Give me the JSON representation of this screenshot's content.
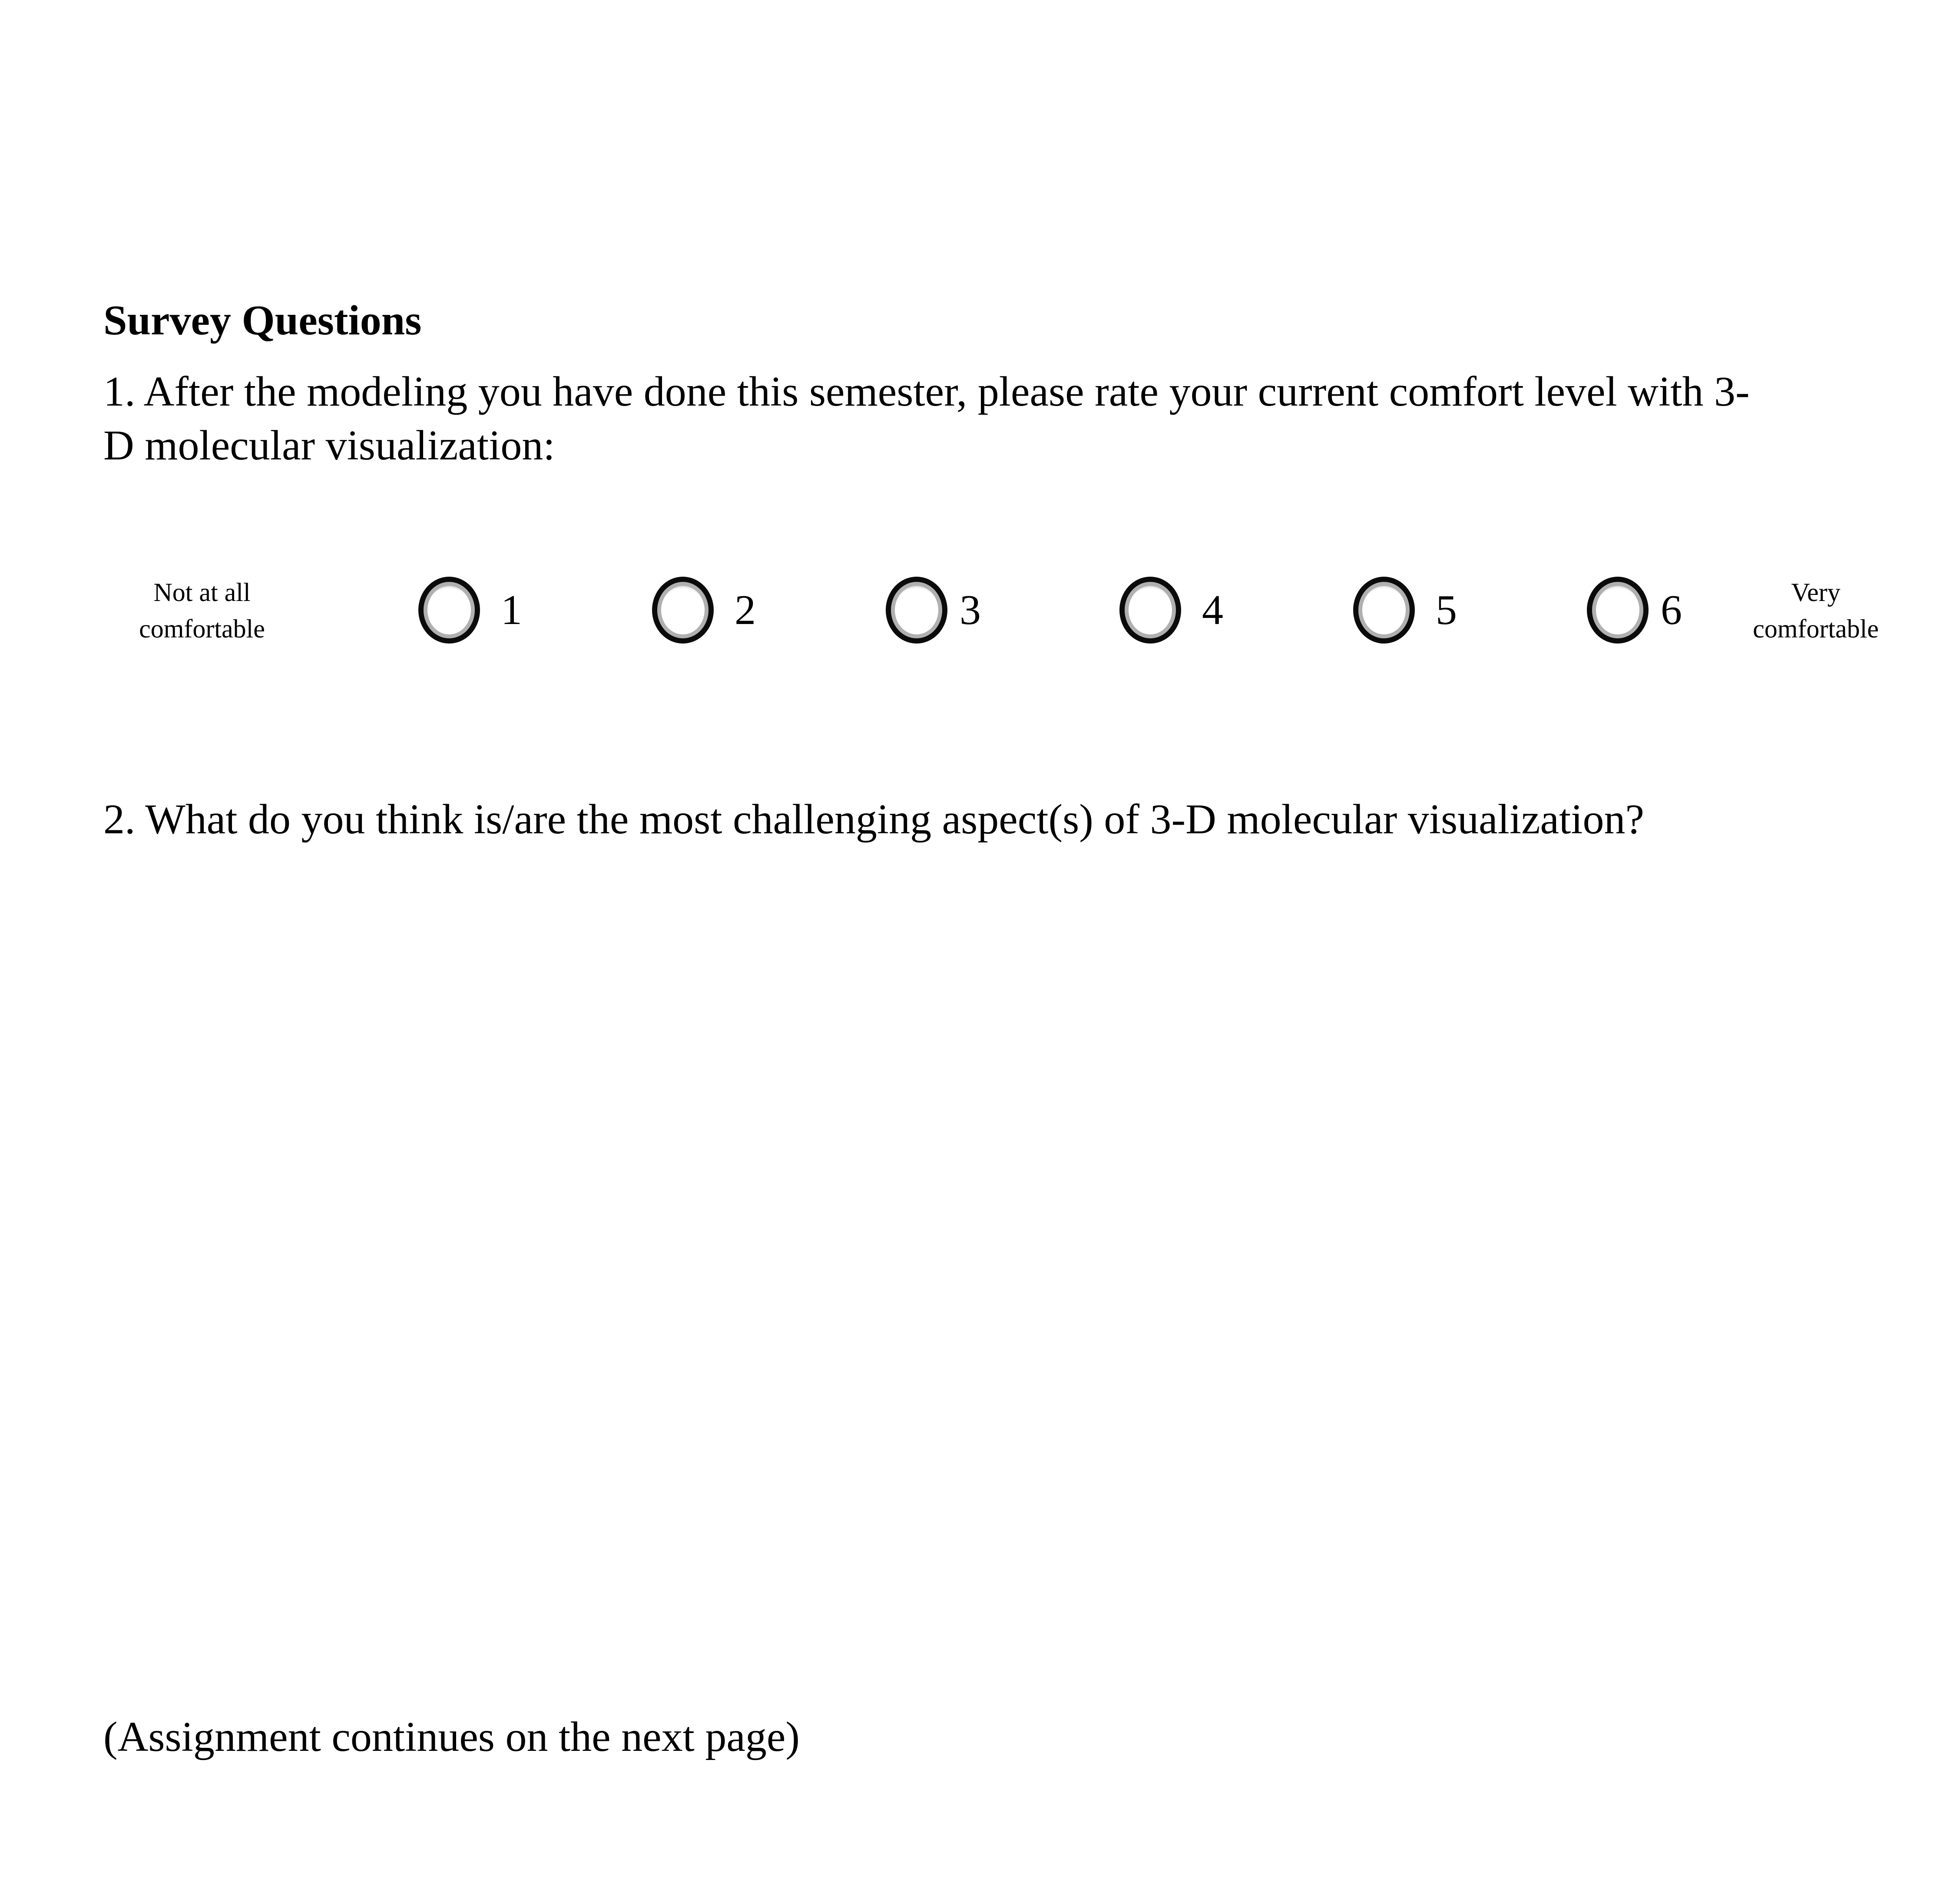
{
  "colors": {
    "page_background": "#ffffff",
    "text_color": "#000000",
    "radio_ring": "#0b0b0b",
    "radio_inner_shade": "#b0b0b0"
  },
  "document": {
    "title": "Survey Questions",
    "questions": [
      {
        "text": "1. After the modeling you have done this semester, please rate your current comfort level with 3-\nD molecular visualization:",
        "scale": {
          "min_label": "Not at all\ncomfortable",
          "max_label": "Very\ncomfortable",
          "options": [
            "1",
            "2",
            "3",
            "4",
            "5",
            "6"
          ]
        }
      },
      {
        "text": "2. What do you think is/are the most challenging aspect(s) of 3-D molecular visualization?"
      }
    ],
    "footer_note": "(Assignment continues on the next page)"
  }
}
